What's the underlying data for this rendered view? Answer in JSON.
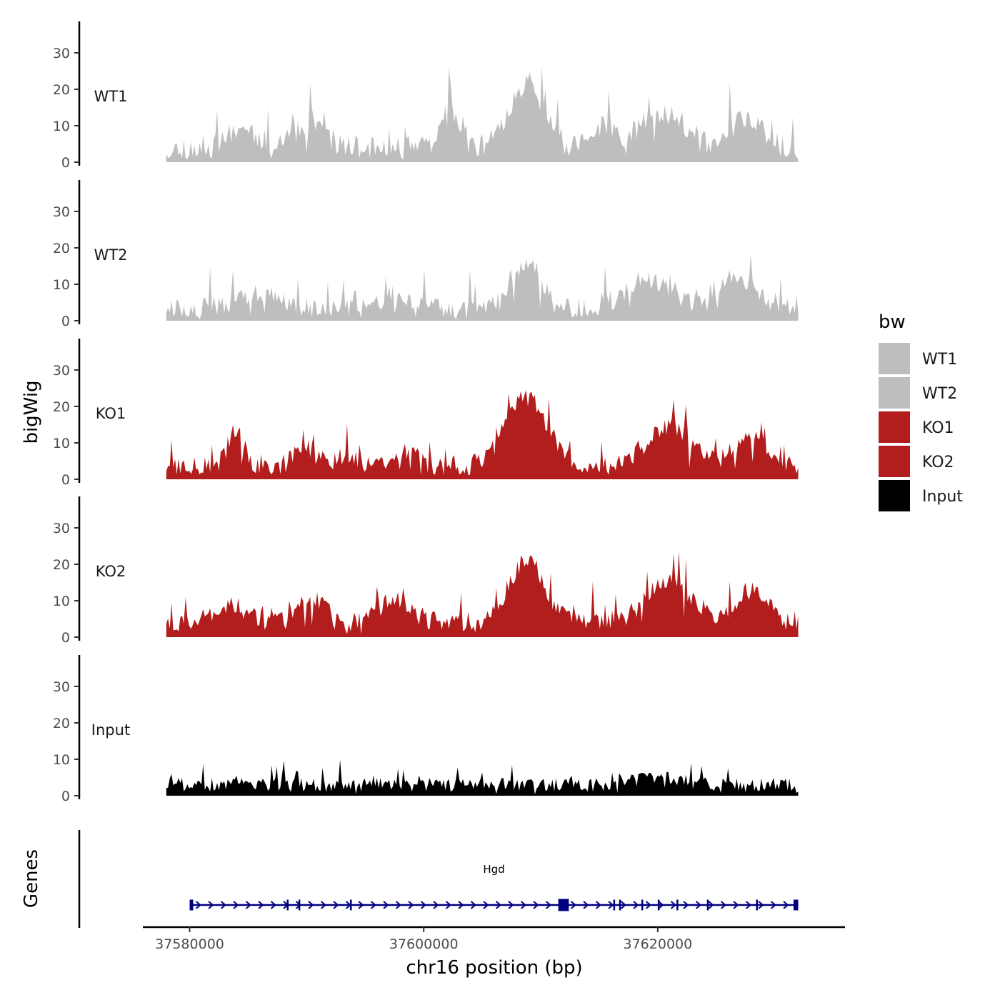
{
  "chart_data": {
    "type": "area",
    "y_axis_title": "bigWig",
    "genes_axis_title": "Genes",
    "x_axis_title": "chr16 position (bp)",
    "x_range": [
      37576000,
      37636000
    ],
    "data_range": [
      37578000,
      37632000
    ],
    "x_ticks": [
      {
        "value": 37580000,
        "label": "37580000"
      },
      {
        "value": 37600000,
        "label": "37600000"
      },
      {
        "value": 37620000,
        "label": "37620000"
      }
    ],
    "y_range": [
      0,
      38
    ],
    "y_ticks": [
      {
        "value": 0,
        "label": "0"
      },
      {
        "value": 10,
        "label": "10"
      },
      {
        "value": 20,
        "label": "20"
      },
      {
        "value": 30,
        "label": "30"
      }
    ],
    "tracks": [
      {
        "name": "WT1",
        "color": "#BEBEBE",
        "seed": 11,
        "base": 4,
        "noise": 5.5,
        "bumps": [
          [
            37584500,
            6,
            1500
          ],
          [
            37590000,
            5,
            2500
          ],
          [
            37602500,
            9,
            1200
          ],
          [
            37608800,
            18,
            2000
          ],
          [
            37615500,
            6,
            1500
          ],
          [
            37620500,
            10,
            2500
          ],
          [
            37627500,
            8,
            1800
          ]
        ]
      },
      {
        "name": "WT2",
        "color": "#BEBEBE",
        "seed": 23,
        "base": 3.5,
        "noise": 4.5,
        "bumps": [
          [
            37586000,
            4,
            2500
          ],
          [
            37597500,
            3,
            2000
          ],
          [
            37608800,
            13,
            1800
          ],
          [
            37619000,
            8,
            2500
          ],
          [
            37626500,
            8,
            2500
          ]
        ]
      },
      {
        "name": "KO1",
        "color": "#B21E1E",
        "seed": 37,
        "base": 3.5,
        "noise": 4.5,
        "bumps": [
          [
            37584000,
            10,
            1000
          ],
          [
            37589800,
            6,
            1200
          ],
          [
            37593500,
            3,
            1500
          ],
          [
            37598500,
            4,
            1500
          ],
          [
            37608800,
            19,
            2500
          ],
          [
            37621000,
            11,
            2800
          ],
          [
            37628000,
            10,
            1800
          ]
        ]
      },
      {
        "name": "KO2",
        "color": "#B21E1E",
        "seed": 53,
        "base": 4,
        "noise": 4.5,
        "bumps": [
          [
            37583500,
            5,
            2000
          ],
          [
            37590500,
            7,
            1500
          ],
          [
            37597500,
            6,
            2000
          ],
          [
            37608800,
            17,
            2200
          ],
          [
            37621000,
            11,
            2800
          ],
          [
            37628000,
            9,
            1800
          ]
        ]
      },
      {
        "name": "Input",
        "color": "#000000",
        "seed": 71,
        "base": 3,
        "noise": 3.2,
        "bumps": [
          [
            37620000,
            2,
            3000
          ]
        ]
      }
    ],
    "legend": {
      "title": "bw",
      "entries": [
        {
          "label": "WT1",
          "color": "#BEBEBE"
        },
        {
          "label": "WT2",
          "color": "#BEBEBE"
        },
        {
          "label": "KO1",
          "color": "#B21E1E"
        },
        {
          "label": "KO2",
          "color": "#B21E1E"
        },
        {
          "label": "Input",
          "color": "#000000"
        }
      ]
    },
    "gene": {
      "name": "Hgd",
      "color": "#00007F",
      "start": 37580000,
      "end": 37632000,
      "strand": "+",
      "exons": [
        {
          "start": 37580000,
          "end": 37580300
        },
        {
          "start": 37588300,
          "end": 37588400
        },
        {
          "start": 37589300,
          "end": 37589400
        },
        {
          "start": 37593700,
          "end": 37593800
        },
        {
          "start": 37611500,
          "end": 37612400
        },
        {
          "start": 37616200,
          "end": 37616300
        },
        {
          "start": 37616700,
          "end": 37616800
        },
        {
          "start": 37618600,
          "end": 37618700
        },
        {
          "start": 37620000,
          "end": 37620100
        },
        {
          "start": 37621600,
          "end": 37621700
        },
        {
          "start": 37624200,
          "end": 37624300
        },
        {
          "start": 37628400,
          "end": 37628500
        },
        {
          "start": 37631600,
          "end": 37632000
        }
      ]
    }
  }
}
